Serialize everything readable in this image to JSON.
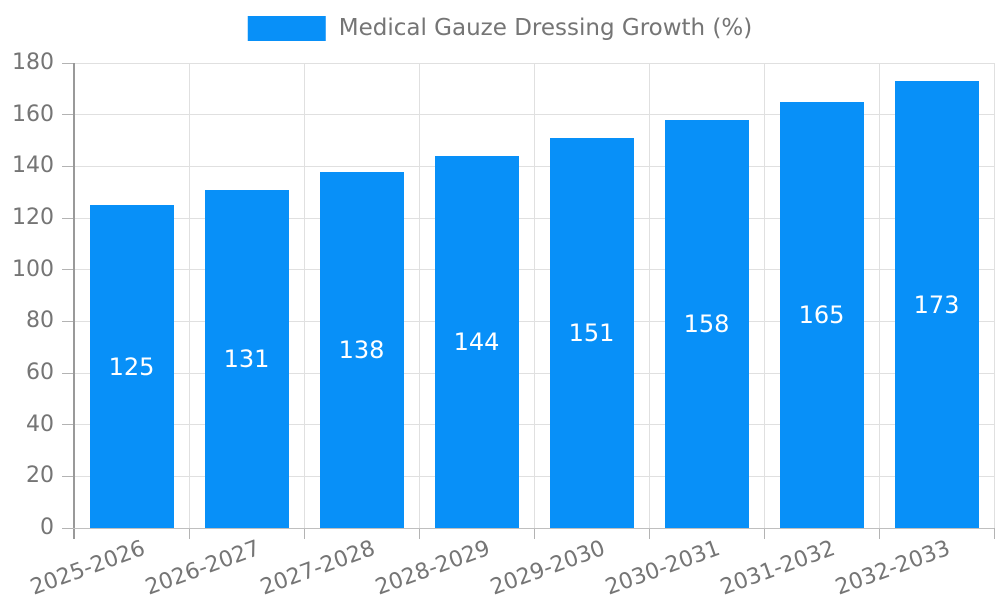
{
  "legend": {
    "label": "Medical Gauze Dressing Growth (%)",
    "swatch_color": "#0890F8"
  },
  "chart_data": {
    "type": "bar",
    "title": "Medical Gauze Dressing Growth (%)",
    "categories": [
      "2025-2026",
      "2026-2027",
      "2027-2028",
      "2028-2029",
      "2029-2030",
      "2030-2031",
      "2031-2032",
      "2032-2033"
    ],
    "values": [
      125,
      131,
      138,
      144,
      151,
      158,
      165,
      173
    ],
    "xlabel": "",
    "ylabel": "",
    "ylim": [
      0,
      180
    ],
    "ytick_step": 20,
    "grid": true,
    "legend_position": "top",
    "bar_color": "#0890F8",
    "bar_label_color": "#FFFFFF",
    "axis_text_color": "#757575",
    "gridline_color": "#E0E0E0",
    "yaxis_line_color": "#999999",
    "xaxis_line_color": "#BFBFBF",
    "tick_color": "#B3B3B3",
    "background_color": "#FFFFFF"
  }
}
